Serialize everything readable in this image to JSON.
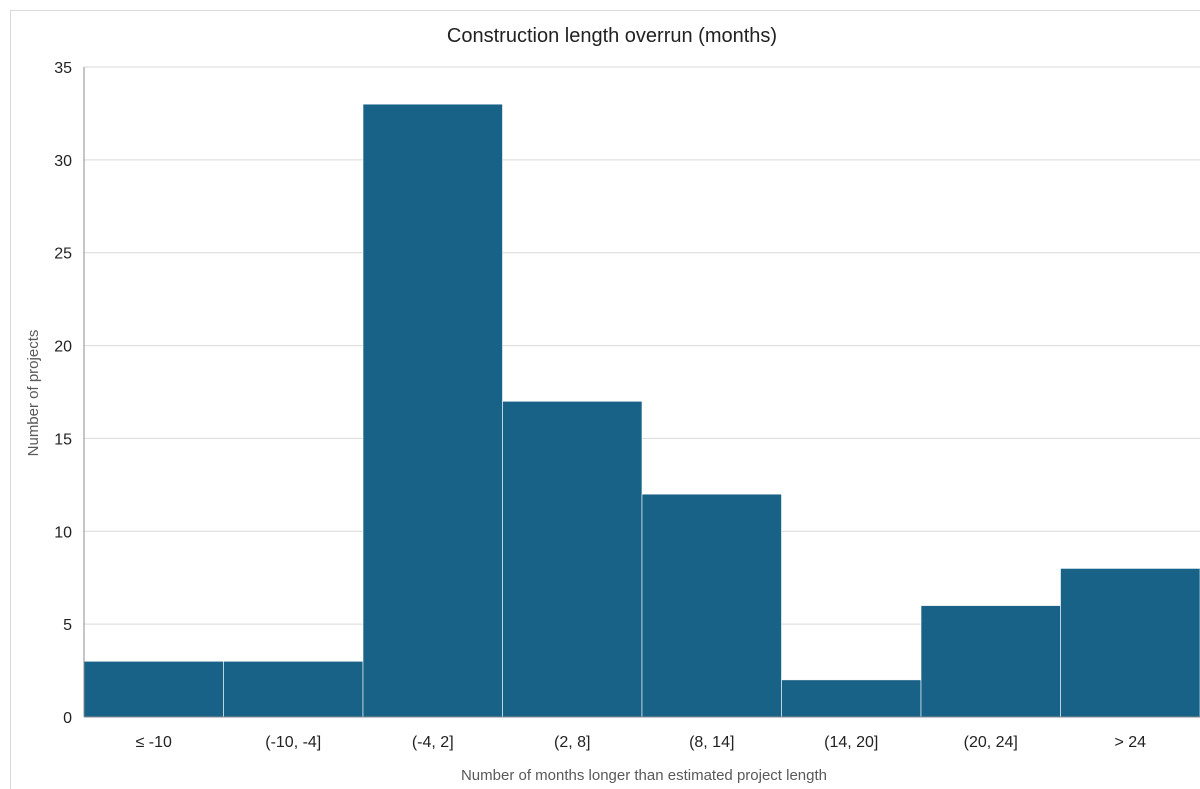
{
  "chart_data": {
    "type": "bar",
    "title": "Construction length overrun (months)",
    "xlabel": "Number of months longer than estimated project length",
    "ylabel": "Number of projects",
    "categories": [
      "≤ -10",
      "(-10, -4]",
      "(-4, 2]",
      "(2, 8]",
      "(8, 14]",
      "(14, 20]",
      "(20, 24]",
      "> 24"
    ],
    "values": [
      3,
      3,
      33,
      17,
      12,
      2,
      6,
      8
    ],
    "ylim": [
      0,
      35
    ],
    "yticks": [
      0,
      5,
      10,
      15,
      20,
      25,
      30,
      35
    ],
    "grid": true,
    "bar_color": "#186288",
    "gridline_color": "#d9d9d9"
  }
}
